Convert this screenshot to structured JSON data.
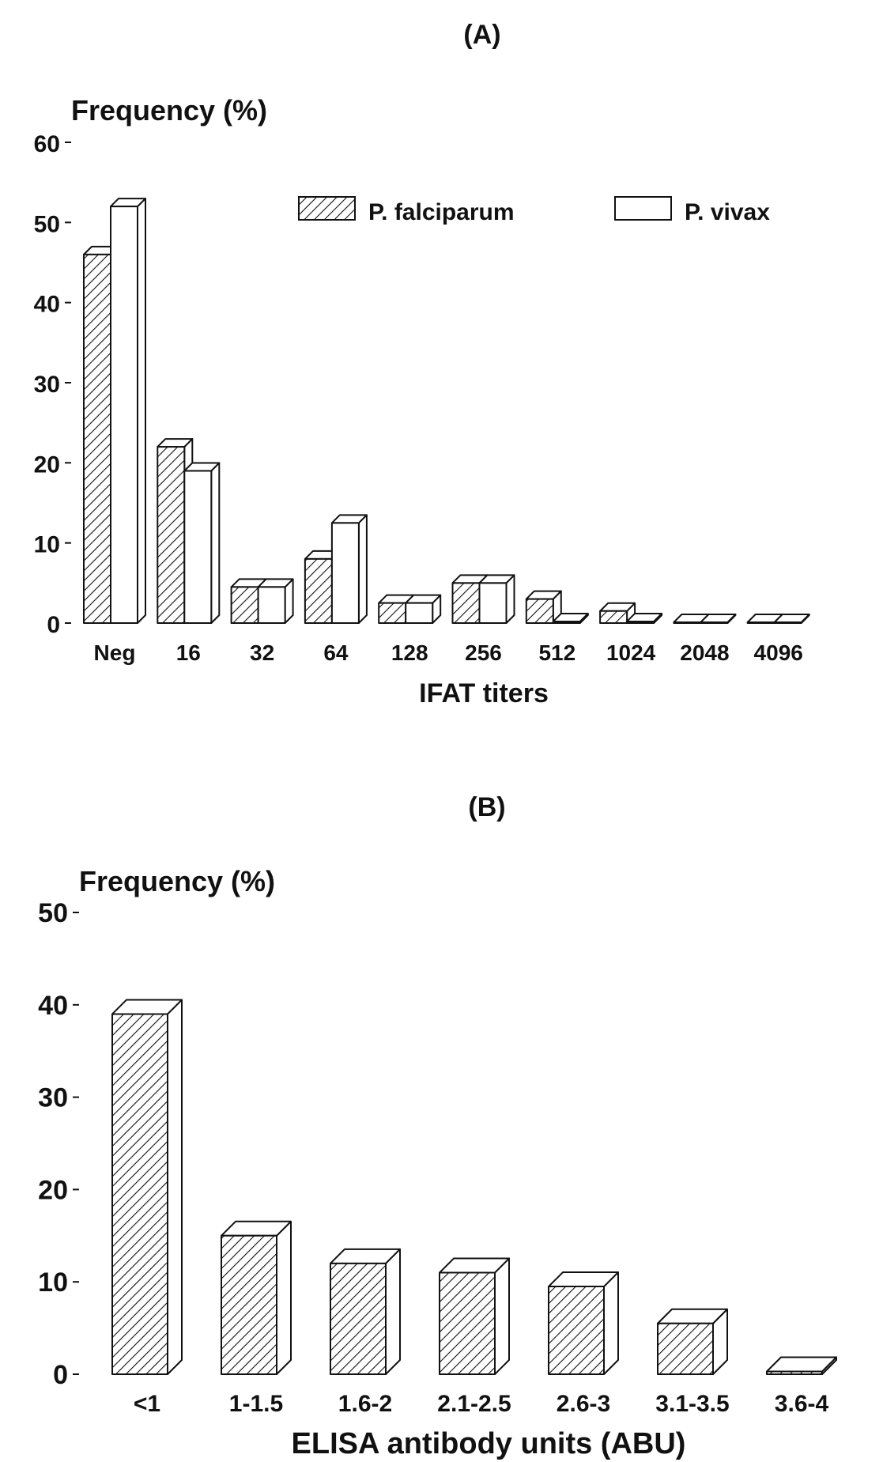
{
  "charts": [
    {
      "panel_label": "(A)",
      "ylabel": "Frequency (%)",
      "xlabel": "IFAT titers",
      "legend": [
        {
          "name": "P. falciparum",
          "pattern": "hatched"
        },
        {
          "name": "P. vivax",
          "pattern": "open"
        }
      ]
    },
    {
      "panel_label": "(B)",
      "ylabel": "Frequency (%)",
      "xlabel": "ELISA antibody units (ABU)"
    }
  ],
  "chart_data": [
    {
      "type": "bar",
      "style": "3d-grouped",
      "title": "(A)",
      "xlabel": "IFAT titers",
      "ylabel": "Frequency (%)",
      "ylim": [
        0,
        60
      ],
      "yticks": [
        0,
        10,
        20,
        30,
        40,
        50,
        60
      ],
      "categories": [
        "Neg",
        "16",
        "32",
        "64",
        "128",
        "256",
        "512",
        "1024",
        "2048",
        "4096"
      ],
      "series": [
        {
          "name": "P. falciparum",
          "pattern": "hatched",
          "values": [
            46,
            22,
            4.5,
            8,
            2.5,
            5,
            3,
            1.5,
            0.1,
            0.1
          ]
        },
        {
          "name": "P. vivax",
          "pattern": "open",
          "values": [
            52,
            19,
            4.5,
            12.5,
            2.5,
            5,
            0.2,
            0.2,
            0.1,
            0.1
          ]
        }
      ],
      "legend_position": "top-right",
      "grid": false
    },
    {
      "type": "bar",
      "style": "3d",
      "title": "(B)",
      "xlabel": "ELISA antibody units (ABU)",
      "ylabel": "Frequency (%)",
      "ylim": [
        0,
        50
      ],
      "yticks": [
        0,
        10,
        20,
        30,
        40,
        50
      ],
      "categories": [
        "<1",
        "1-1.5",
        "1.6-2",
        "2.1-2.5",
        "2.6-3",
        "3.1-3.5",
        "3.6-4"
      ],
      "series": [
        {
          "pattern": "hatched",
          "values": [
            39,
            15,
            12,
            11,
            9.5,
            5.5,
            0.3
          ]
        }
      ],
      "grid": false
    }
  ]
}
